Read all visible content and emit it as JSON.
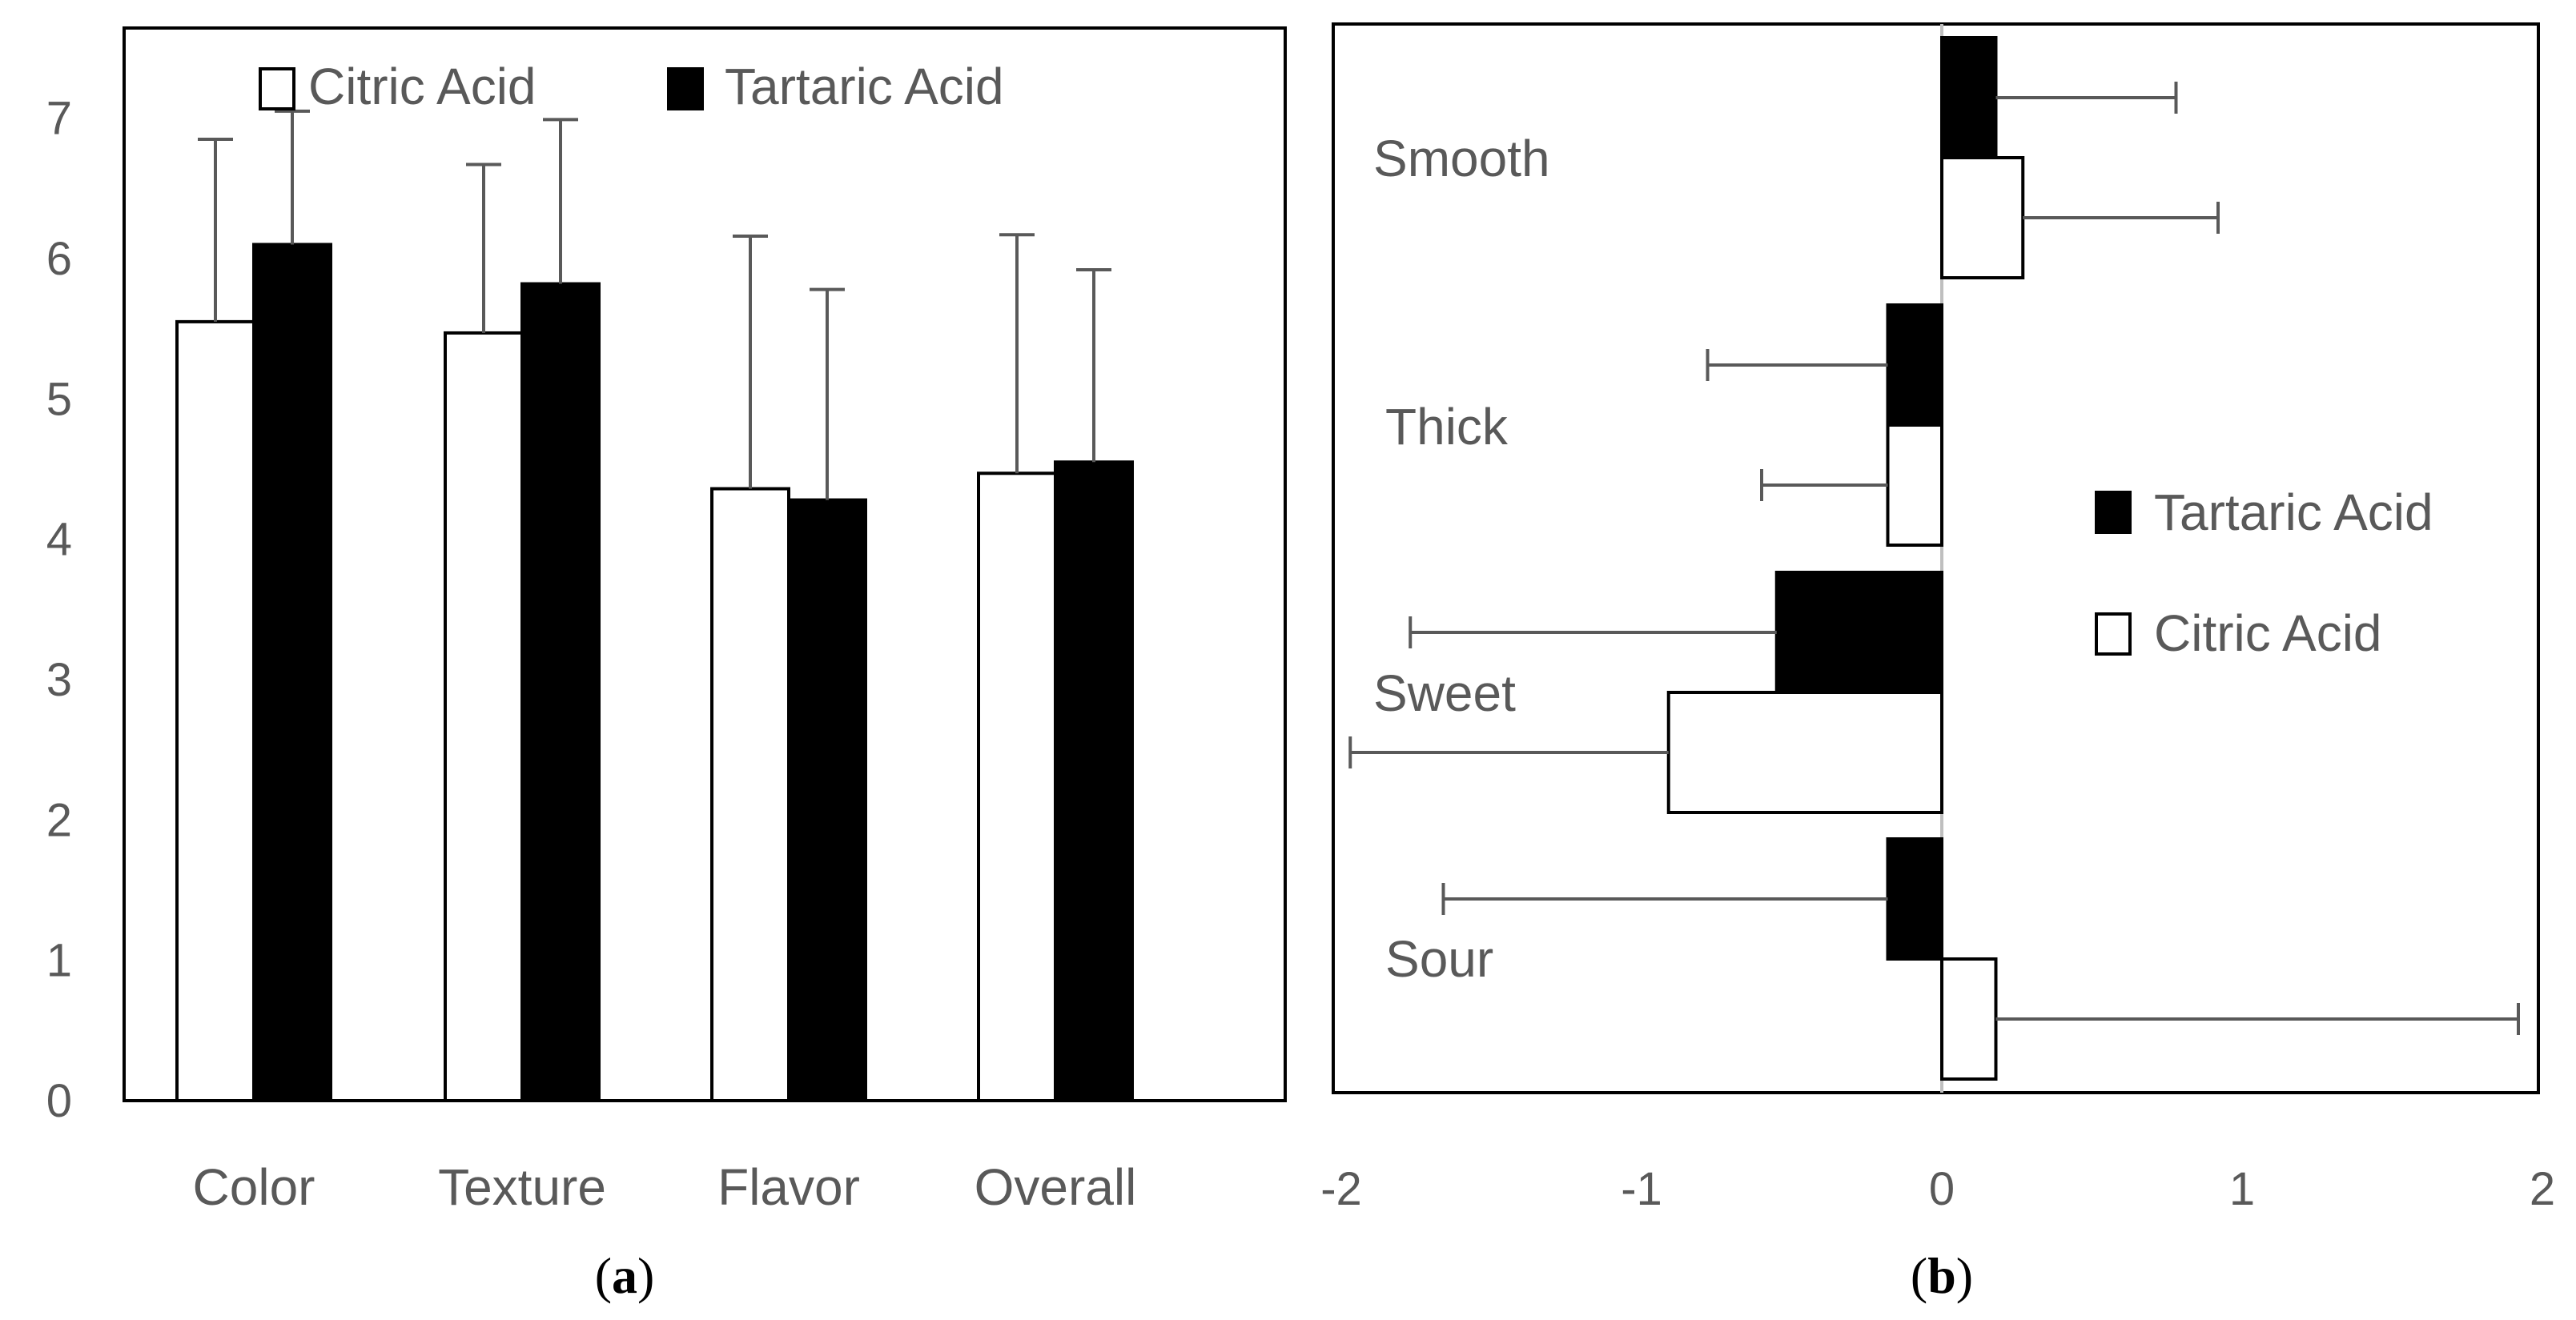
{
  "colors": {
    "citric": "#ffffff",
    "tartaric": "#000000",
    "outline": "#000000",
    "text": "#595959",
    "errbar": "#595959",
    "zero_line": "#bfbfbf"
  },
  "chart_data": [
    {
      "panel": "(a)",
      "panel_letter": "a",
      "type": "bar",
      "orientation": "vertical",
      "categories": [
        "Color",
        "Texture",
        "Flavor",
        "Overall"
      ],
      "series": [
        {
          "name": "Citric Acid",
          "fill": "white",
          "values": [
            5.55,
            5.47,
            4.36,
            4.47
          ],
          "errors": [
            1.3,
            1.2,
            1.8,
            1.7
          ]
        },
        {
          "name": "Tartaric Acid",
          "fill": "black",
          "values": [
            6.1,
            5.82,
            4.28,
            4.55
          ],
          "errors": [
            0.95,
            1.17,
            1.5,
            1.37
          ]
        }
      ],
      "ylim": [
        0,
        7.5
      ],
      "yticks": [
        "0",
        "1",
        "2",
        "3",
        "4",
        "5",
        "6",
        "7"
      ],
      "legend": [
        "Citric Acid",
        "Tartaric Acid"
      ],
      "legend_position": "top",
      "title": "",
      "xlabel": "",
      "ylabel": "",
      "grid": false
    },
    {
      "panel": "(b)",
      "panel_letter": "b",
      "type": "bar",
      "orientation": "horizontal",
      "categories": [
        "Smooth",
        "Thick",
        "Sweet",
        "Sour"
      ],
      "series": [
        {
          "name": "Tartaric Acid",
          "fill": "black",
          "values": [
            0.18,
            -0.18,
            -0.55,
            -0.18
          ],
          "errors": [
            0.6,
            0.6,
            1.22,
            1.48
          ]
        },
        {
          "name": "Citric Acid",
          "fill": "white",
          "values": [
            0.27,
            -0.18,
            -0.91,
            0.18
          ],
          "errors": [
            0.65,
            0.42,
            1.06,
            1.74
          ]
        }
      ],
      "xlim": [
        -2,
        2
      ],
      "xticks": [
        "-2",
        "-1",
        "0",
        "1",
        "2"
      ],
      "legend": [
        "Tartaric Acid",
        "Citric Acid"
      ],
      "legend_position": "right",
      "title": "",
      "xlabel": "",
      "ylabel": "",
      "grid": false
    }
  ]
}
